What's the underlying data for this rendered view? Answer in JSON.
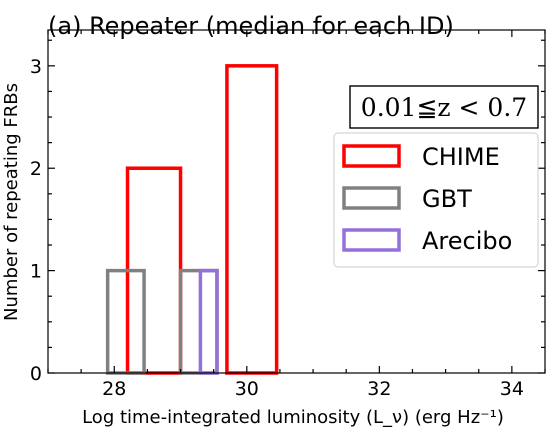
{
  "chart_data": {
    "type": "bar",
    "title": "(a) Repeater (median for each ID)",
    "annotation": "0.01≦z < 0.7",
    "xlabel": "Log time-integrated luminosity (L_ν) (erg Hz⁻¹)",
    "ylabel": "Number of repeating FRBs",
    "xlim": [
      27.0,
      34.5
    ],
    "ylim": [
      0,
      3.35
    ],
    "x_ticks": [
      28,
      30,
      32,
      34
    ],
    "y_ticks": [
      0,
      1,
      2,
      3
    ],
    "histtype": "step",
    "legend_position": "upper right",
    "series": [
      {
        "name": "CHIME",
        "color": "#ff0000",
        "bins": [
          {
            "x0": 28.2,
            "x1": 29.0,
            "count": 2
          },
          {
            "x0": 29.0,
            "x1": 29.7,
            "count": 0
          },
          {
            "x0": 29.7,
            "x1": 30.45,
            "count": 3
          }
        ]
      },
      {
        "name": "GBT",
        "color": "#808080",
        "bins": [
          {
            "x0": 27.9,
            "x1": 28.45,
            "count": 1
          },
          {
            "x0": 28.45,
            "x1": 29.0,
            "count": 0
          },
          {
            "x0": 29.0,
            "x1": 29.55,
            "count": 1
          }
        ]
      },
      {
        "name": "Arecibo",
        "color": "#9370db",
        "bins": [
          {
            "x0": 29.3,
            "x1": 29.55,
            "count": 1
          }
        ]
      }
    ]
  }
}
